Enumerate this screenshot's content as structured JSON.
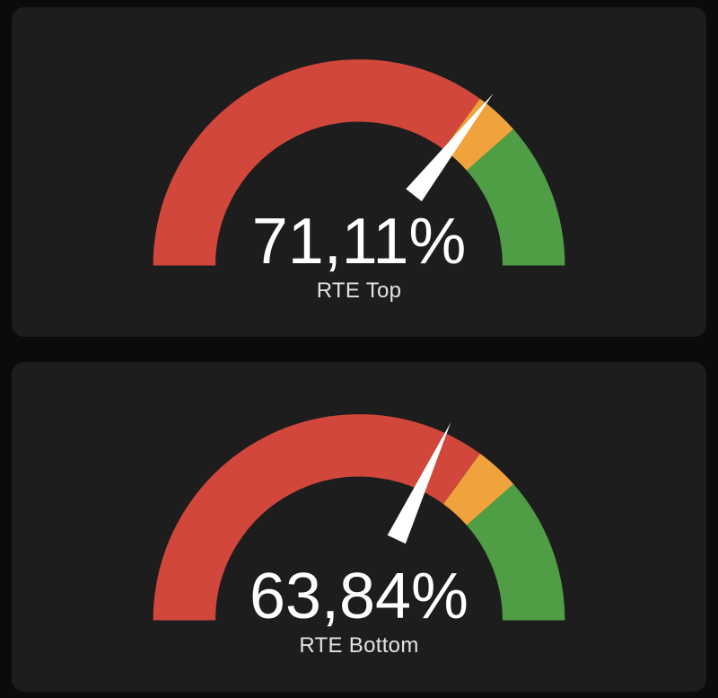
{
  "page": {
    "background_color": "#0b0b0b",
    "card_background_color": "#1d1d1d",
    "value_text_color": "#ffffff",
    "label_text_color": "#e3e3e3"
  },
  "chart_data": [
    {
      "type": "gauge",
      "title": "RTE Top",
      "value": 71.11,
      "value_display": "71,11%",
      "unit": "%",
      "min": 0,
      "max": 100,
      "needle": true,
      "needle_color": "#ffffff",
      "segments": [
        {
          "from": 0,
          "to": 70,
          "color": "#d1473b"
        },
        {
          "from": 70,
          "to": 77,
          "color": "#f0a33c"
        },
        {
          "from": 77,
          "to": 100,
          "color": "#4f9e45"
        }
      ]
    },
    {
      "type": "gauge",
      "title": "RTE Bottom",
      "value": 63.84,
      "value_display": "63,84%",
      "unit": "%",
      "min": 0,
      "max": 100,
      "needle": true,
      "needle_color": "#ffffff",
      "segments": [
        {
          "from": 0,
          "to": 70,
          "color": "#d1473b"
        },
        {
          "from": 70,
          "to": 77,
          "color": "#f0a33c"
        },
        {
          "from": 77,
          "to": 100,
          "color": "#4f9e45"
        }
      ]
    }
  ]
}
